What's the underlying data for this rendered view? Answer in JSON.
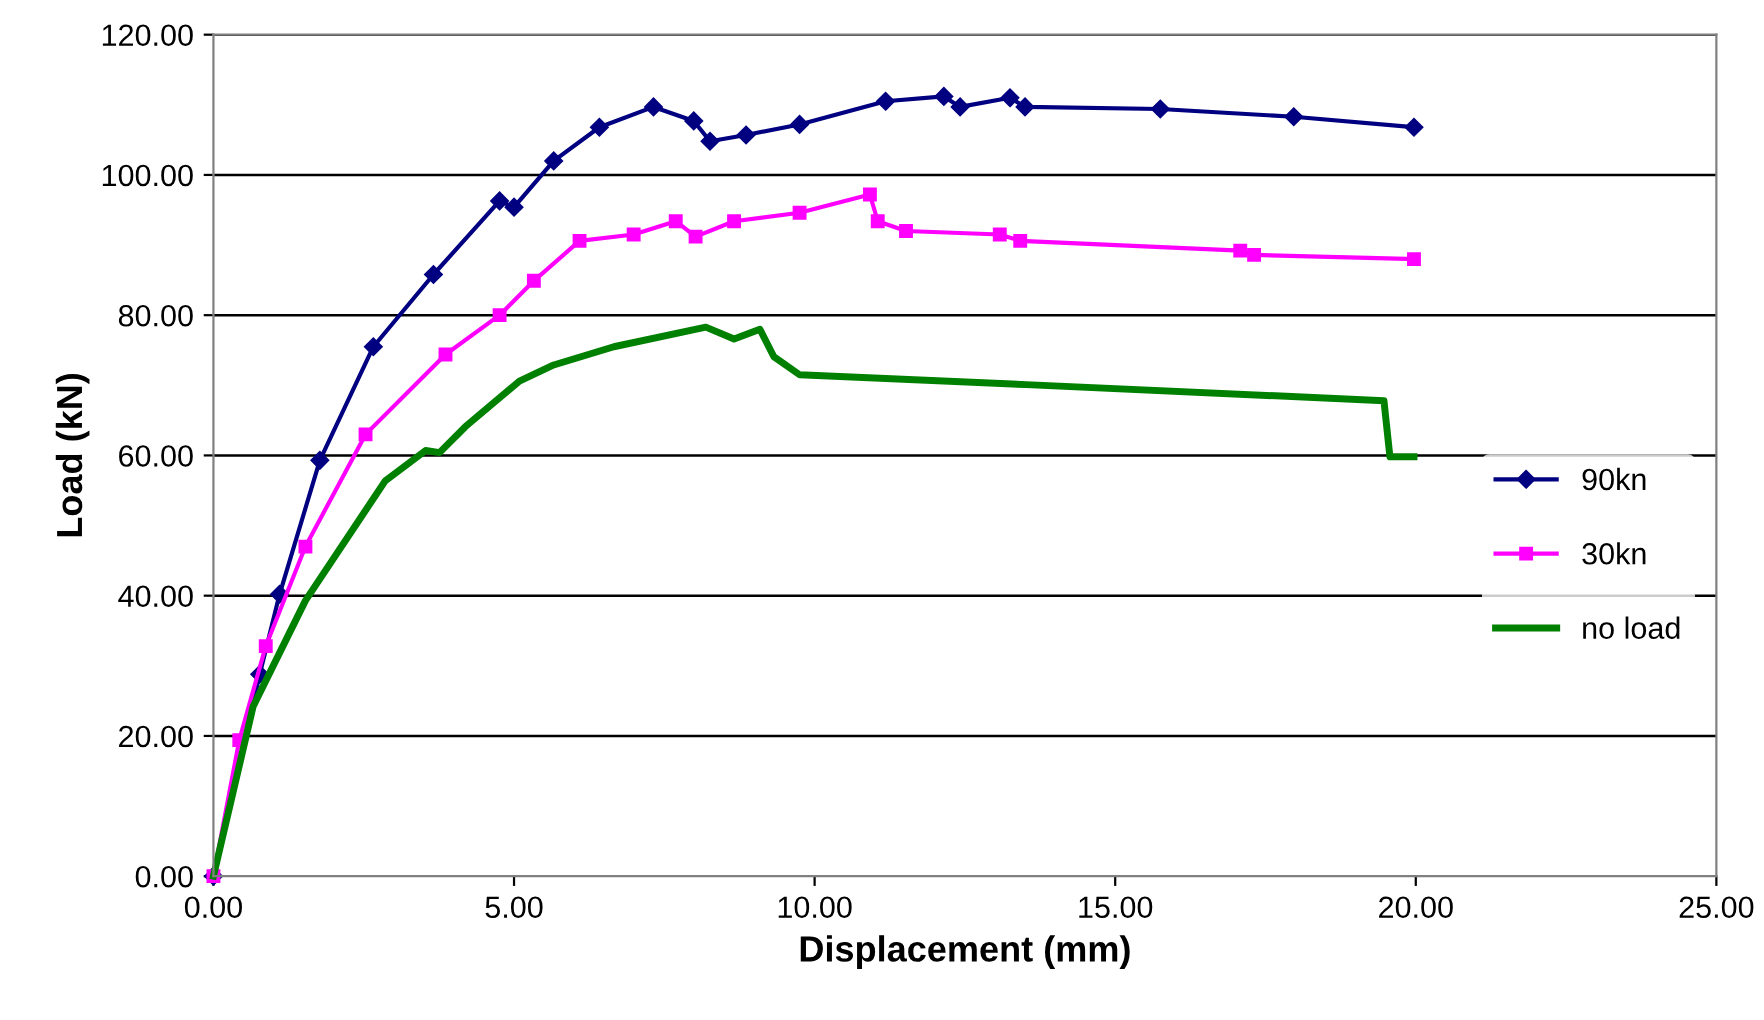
{
  "chart_data": {
    "type": "line",
    "xlabel": "Displacement (mm)",
    "ylabel": "Load (kN)",
    "xlim": [
      0,
      25
    ],
    "ylim": [
      0,
      120
    ],
    "xticks": [
      {
        "value": 0,
        "label": "0.00"
      },
      {
        "value": 5,
        "label": "5.00"
      },
      {
        "value": 10,
        "label": "10.00"
      },
      {
        "value": 15,
        "label": "15.00"
      },
      {
        "value": 20,
        "label": "20.00"
      },
      {
        "value": 25,
        "label": "25.00"
      }
    ],
    "yticks": [
      {
        "value": 0,
        "label": "0.00"
      },
      {
        "value": 20,
        "label": "20.00"
      },
      {
        "value": 40,
        "label": "40.00"
      },
      {
        "value": 60,
        "label": "60.00"
      },
      {
        "value": 80,
        "label": "80.00"
      },
      {
        "value": 100,
        "label": "100.00"
      },
      {
        "value": 120,
        "label": "120.00"
      }
    ],
    "grid": "y",
    "legend": "right",
    "line_style": "solid",
    "series": [
      {
        "name": "90kn",
        "color": "#000080",
        "marker": "diamond",
        "x": [
          0,
          0.77,
          1.1,
          1.77,
          2.66,
          3.66,
          4.76,
          5.0,
          5.66,
          6.42,
          7.32,
          7.99,
          8.26,
          8.86,
          9.75,
          11.18,
          12.15,
          12.42,
          13.25,
          13.5,
          15.75,
          17.97,
          19.97
        ],
        "values": [
          0,
          28.8,
          40.2,
          59.3,
          75.5,
          85.8,
          96.3,
          95.4,
          102,
          106.8,
          109.7,
          107.7,
          104.8,
          105.7,
          107.2,
          110.5,
          111.2,
          109.7,
          111,
          109.7,
          109.4,
          108.3,
          106.8
        ]
      },
      {
        "name": "30kn",
        "color": "#ff00ff",
        "marker": "square",
        "x": [
          0,
          0.43,
          0.87,
          1.53,
          2.53,
          3.86,
          4.76,
          5.33,
          6.09,
          6.99,
          7.69,
          8.02,
          8.66,
          9.75,
          10.92,
          11.05,
          11.52,
          13.08,
          13.42,
          17.08,
          17.31,
          19.97
        ],
        "values": [
          0,
          19.4,
          32.8,
          47,
          63,
          74.4,
          80,
          84.9,
          90.6,
          91.5,
          93.4,
          91.2,
          93.4,
          94.6,
          97.2,
          93.4,
          92,
          91.5,
          90.6,
          89.2,
          88.6,
          88
        ]
      },
      {
        "name": "no load",
        "color": "#008000",
        "marker": "none",
        "x": [
          0,
          0.66,
          1.53,
          2.86,
          3.53,
          3.76,
          4.19,
          5.09,
          5.66,
          6.66,
          8.19,
          8.66,
          9.09,
          9.32,
          9.75,
          13.52,
          19.47,
          19.57,
          19.97
        ],
        "values": [
          0,
          24.2,
          39.3,
          56.4,
          60.7,
          60.4,
          64.1,
          70.6,
          72.9,
          75.5,
          78.3,
          76.6,
          78,
          74.1,
          71.5,
          70.1,
          67.8,
          59.8,
          59.8
        ]
      }
    ]
  }
}
